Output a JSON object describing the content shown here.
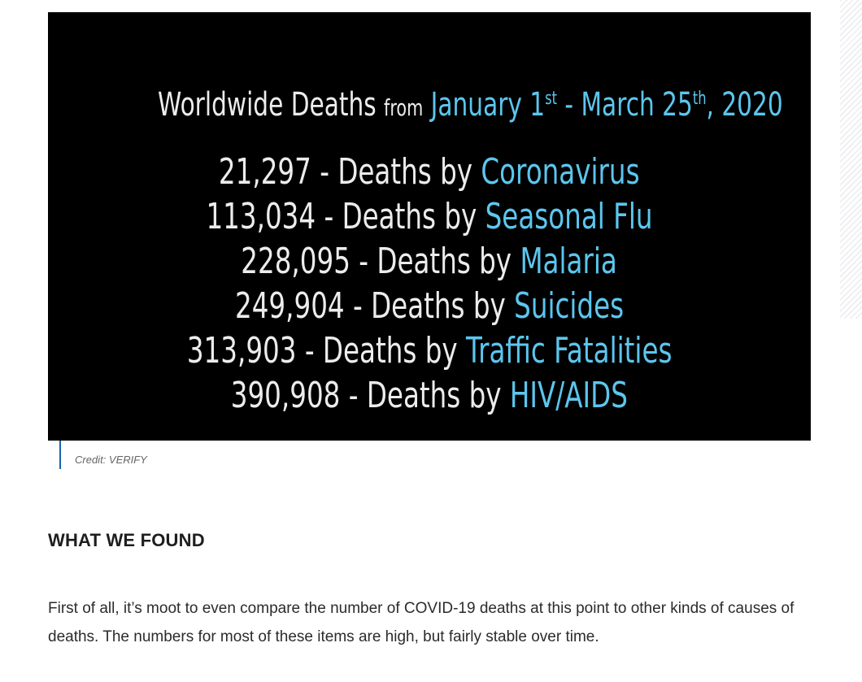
{
  "figure": {
    "image_title": {
      "prefix": "Worldwide Deaths",
      "from": "from",
      "date_start": "January 1",
      "start_suffix": "st",
      "separator": " - ",
      "date_end": "March 25",
      "end_suffix": "th",
      "year": ", 2020"
    },
    "image_rows": [
      {
        "count": "21,297",
        "label": "Deaths by",
        "cause": "Coronavirus"
      },
      {
        "count": "113,034",
        "label": "Deaths by",
        "cause": "Seasonal Flu"
      },
      {
        "count": "228,095",
        "label": "Deaths by",
        "cause": "Malaria"
      },
      {
        "count": "249,904",
        "label": "Deaths by",
        "cause": "Suicides"
      },
      {
        "count": "313,903",
        "label": "Deaths by",
        "cause": "Traffic Fatalities"
      },
      {
        "count": "390,908",
        "label": "Deaths by",
        "cause": "HIV/AIDS"
      }
    ],
    "dash": " - ",
    "caption": "Credit: VERIFY"
  },
  "article": {
    "section_heading": "WHAT WE FOUND",
    "paragraph": "First of all, it’s moot to even compare the number of COVID-19 deaths at this point to other kinds of causes of deaths. The numbers for most of these items are high, but fairly stable over time."
  },
  "colors": {
    "image_background": "#000000",
    "image_text": "#ececec",
    "image_accent": "#5cc6ee",
    "caption_rule": "#1b64a8"
  }
}
